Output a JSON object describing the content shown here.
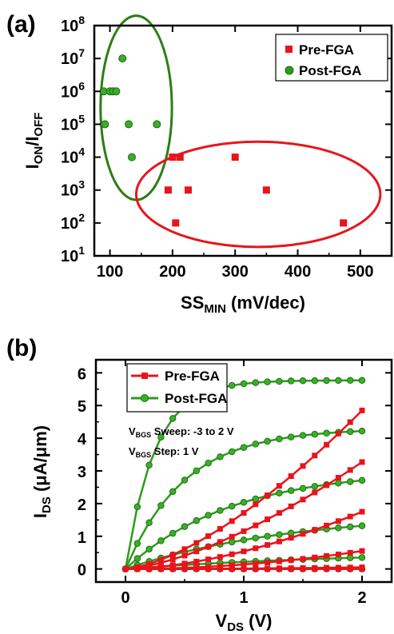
{
  "chart_data": [
    {
      "panel_label": "(a)",
      "type": "scatter",
      "xlabel_main": "SS",
      "xlabel_sub": "MIN",
      "xlabel_unit": " (mV/dec)",
      "ylabel_parts": [
        "I",
        "ON",
        "/I",
        "OFF"
      ],
      "xlim": [
        75,
        550
      ],
      "ylim": [
        10,
        100000000
      ],
      "yscale": "log",
      "xticks": [
        100,
        200,
        300,
        400,
        500
      ],
      "yticks": [
        {
          "value": 10,
          "base": "10",
          "exp": "1"
        },
        {
          "value": 100,
          "base": "10",
          "exp": "2"
        },
        {
          "value": 1000,
          "base": "10",
          "exp": "3"
        },
        {
          "value": 10000,
          "base": "10",
          "exp": "4"
        },
        {
          "value": 100000,
          "base": "10",
          "exp": "5"
        },
        {
          "value": 1000000,
          "base": "10",
          "exp": "6"
        },
        {
          "value": 10000000,
          "base": "10",
          "exp": "7"
        },
        {
          "value": 100000000,
          "base": "10",
          "exp": "8"
        }
      ],
      "legend_position": "top-right",
      "grid": false,
      "series": [
        {
          "name": "Pre-FGA",
          "marker": "square",
          "color": "#e8141c",
          "points": [
            [
              200,
              10000
            ],
            [
              212,
              10000
            ],
            [
              300,
              10000
            ],
            [
              193,
              1000
            ],
            [
              225,
              1000
            ],
            [
              350,
              1000
            ],
            [
              205,
              100
            ],
            [
              473,
              100
            ]
          ]
        },
        {
          "name": "Post-FGA",
          "marker": "circle",
          "color": "#2e9a1e",
          "points": [
            [
              120,
              10000000
            ],
            [
              90,
              1000000
            ],
            [
              100,
              1000000
            ],
            [
              105,
              1000000
            ],
            [
              110,
              1000000
            ],
            [
              92,
              100000
            ],
            [
              130,
              100000
            ],
            [
              175,
              100000
            ],
            [
              135,
              10000
            ]
          ]
        }
      ],
      "ellipses": [
        {
          "series": "Post-FGA",
          "color": "#2e7d17",
          "cx": 142,
          "cy_decade": 5.5,
          "rx": 57,
          "ry_decades": 2.8
        },
        {
          "series": "Pre-FGA",
          "color": "#e8141c",
          "cx": 337,
          "cy_decade": 2.87,
          "rx": 195,
          "ry_decades": 1.6
        }
      ]
    },
    {
      "panel_label": "(b)",
      "type": "line",
      "xlabel_main": "V",
      "xlabel_sub": "DS",
      "xlabel_unit": " (V)",
      "ylabel_main": "I",
      "ylabel_sub": "DS",
      "ylabel_unit": " (μA/μm)",
      "xlim": [
        -0.25,
        2.25
      ],
      "ylim": [
        -0.4,
        6.4
      ],
      "xticks": [
        0,
        1,
        2
      ],
      "yticks": [
        0,
        1,
        2,
        3,
        4,
        5,
        6
      ],
      "legend_position": "top-left",
      "grid": false,
      "annotations": [
        {
          "main": "V",
          "sub": "BGS",
          "rest": " Sweep: -3 to 2 V"
        },
        {
          "main": "V",
          "sub": "BGS",
          "rest": " Step: 1 V"
        }
      ],
      "x": [
        0,
        0.1,
        0.2,
        0.3,
        0.4,
        0.5,
        0.6,
        0.7,
        0.8,
        0.9,
        1.0,
        1.1,
        1.2,
        1.3,
        1.4,
        1.5,
        1.6,
        1.7,
        1.8,
        1.9,
        2.0
      ],
      "series": [
        {
          "name": "Pre-FGA",
          "color": "#e8141c",
          "marker": "square",
          "curves": [
            {
              "final": 4.85,
              "exp": 1.5
            },
            {
              "final": 3.27,
              "exp": 1.5
            },
            {
              "final": 1.75,
              "exp": 1.7
            },
            {
              "final": 0.55,
              "exp": 2.0
            },
            {
              "final": 0.05,
              "exp": 2.0
            },
            {
              "final": 0.0,
              "exp": 1.0
            }
          ]
        },
        {
          "name": "Post-FGA",
          "color": "#2e9a1e",
          "marker": "circle",
          "curves": [
            {
              "final": 5.77,
              "sat": 0.25
            },
            {
              "final": 4.22,
              "sat": 0.5
            },
            {
              "final": 2.71,
              "sat": 0.9
            },
            {
              "final": 1.32,
              "sat": 1.4
            },
            {
              "final": 0.35,
              "sat": 2.0
            },
            {
              "final": 0.0,
              "sat": 2.0
            }
          ]
        }
      ]
    }
  ]
}
